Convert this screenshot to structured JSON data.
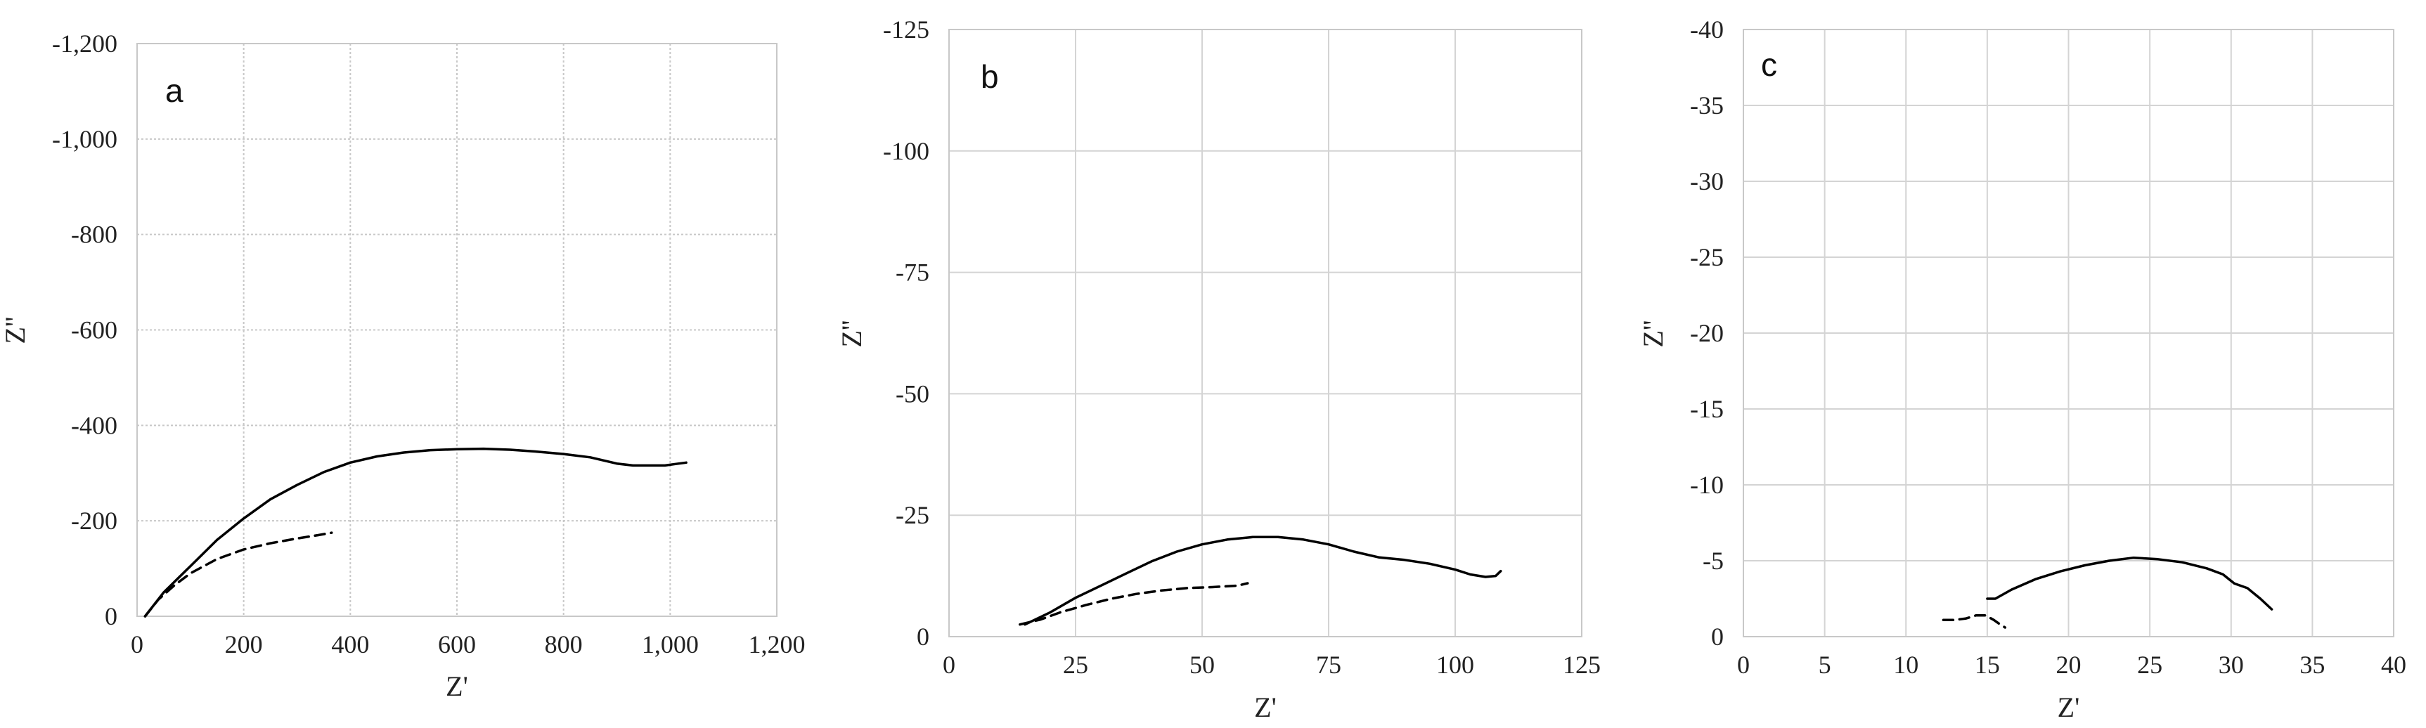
{
  "chart_data": [
    {
      "type": "line",
      "panel_label": "a",
      "xlabel": "Z'",
      "ylabel": "Z''",
      "xlim": [
        0,
        1200
      ],
      "ylim": [
        0,
        -1200
      ],
      "y_inverted": true,
      "x_ticks": [
        "0",
        "200",
        "400",
        "600",
        "800",
        "1,000",
        "1,200"
      ],
      "x_tick_values": [
        0,
        200,
        400,
        600,
        800,
        1000,
        1200
      ],
      "y_ticks": [
        "0",
        "-200",
        "-400",
        "-600",
        "-800",
        "-1,000",
        "-1,200"
      ],
      "y_tick_values": [
        0,
        -200,
        -400,
        -600,
        -800,
        -1000,
        -1200
      ],
      "grid": "dotted",
      "series": [
        {
          "style": "solid",
          "x": [
            15,
            50,
            100,
            150,
            200,
            250,
            300,
            350,
            400,
            450,
            500,
            550,
            600,
            650,
            700,
            750,
            800,
            850,
            900,
            930,
            960,
            990,
            1010,
            1030
          ],
          "y": [
            0,
            -50,
            -105,
            -160,
            -205,
            -245,
            -275,
            -302,
            -322,
            -335,
            -343,
            -348,
            -350,
            -351,
            -349,
            -345,
            -340,
            -333,
            -320,
            -316,
            -316,
            -316,
            -319,
            -322
          ]
        },
        {
          "style": "dashed",
          "x": [
            15,
            40,
            70,
            100,
            150,
            200,
            250,
            300,
            340,
            365
          ],
          "y": [
            0,
            -35,
            -65,
            -90,
            -120,
            -140,
            -153,
            -163,
            -170,
            -175
          ]
        }
      ]
    },
    {
      "type": "line",
      "panel_label": "b",
      "xlabel": "Z'",
      "ylabel": "Z''",
      "xlim": [
        0,
        125
      ],
      "ylim": [
        0,
        -125
      ],
      "y_inverted": true,
      "x_ticks": [
        "0",
        "25",
        "50",
        "75",
        "100",
        "125"
      ],
      "x_tick_values": [
        0,
        25,
        50,
        75,
        100,
        125
      ],
      "y_ticks": [
        "0",
        "-25",
        "-50",
        "-75",
        "-100",
        "-125"
      ],
      "y_tick_values": [
        0,
        -25,
        -50,
        -75,
        -100,
        -125
      ],
      "grid": "solid",
      "series": [
        {
          "style": "solid",
          "x": [
            15,
            20,
            25,
            30,
            35,
            40,
            45,
            50,
            55,
            60,
            65,
            70,
            75,
            80,
            85,
            90,
            95,
            100,
            103,
            106,
            108,
            109
          ],
          "y": [
            -2.5,
            -5,
            -8,
            -10.5,
            -13,
            -15.5,
            -17.5,
            -19,
            -20,
            -20.5,
            -20.5,
            -20,
            -19,
            -17.5,
            -16.3,
            -15.8,
            -15,
            -13.8,
            -12.8,
            -12.3,
            -12.5,
            -13.5
          ]
        },
        {
          "style": "dashed",
          "x": [
            14,
            18,
            22,
            27,
            32,
            37,
            42,
            47,
            52,
            57,
            59
          ],
          "y": [
            -2.5,
            -3.5,
            -5,
            -6.5,
            -7.8,
            -8.8,
            -9.5,
            -10,
            -10.2,
            -10.5,
            -11
          ]
        }
      ]
    },
    {
      "type": "line",
      "panel_label": "c",
      "xlabel": "Z'",
      "ylabel": "Z''",
      "xlim": [
        0,
        40
      ],
      "ylim": [
        0,
        -40
      ],
      "y_inverted": true,
      "x_ticks": [
        "0",
        "5",
        "10",
        "15",
        "20",
        "25",
        "30",
        "35",
        "40"
      ],
      "x_tick_values": [
        0,
        5,
        10,
        15,
        20,
        25,
        30,
        35,
        40
      ],
      "y_ticks": [
        "0",
        "-5",
        "-10",
        "-15",
        "-20",
        "-25",
        "-30",
        "-35",
        "-40"
      ],
      "y_tick_values": [
        0,
        -5,
        -10,
        -15,
        -20,
        -25,
        -30,
        -35,
        -40
      ],
      "grid": "solid",
      "series": [
        {
          "style": "solid",
          "x": [
            15,
            15.5,
            16.5,
            18,
            19.5,
            21,
            22.5,
            24,
            25.5,
            27,
            28.5,
            29.5,
            30.2,
            31,
            31.8,
            32.5
          ],
          "y": [
            -2.5,
            -2.5,
            -3.1,
            -3.8,
            -4.3,
            -4.7,
            -5.0,
            -5.2,
            -5.1,
            -4.9,
            -4.5,
            -4.1,
            -3.5,
            -3.2,
            -2.5,
            -1.8
          ]
        },
        {
          "style": "dashed",
          "x": [
            12.3,
            13,
            13.7,
            14.3,
            14.9,
            15.4,
            15.8,
            16.1
          ],
          "y": [
            -1.1,
            -1.1,
            -1.2,
            -1.4,
            -1.4,
            -1.1,
            -0.8,
            -0.6
          ]
        }
      ]
    }
  ]
}
